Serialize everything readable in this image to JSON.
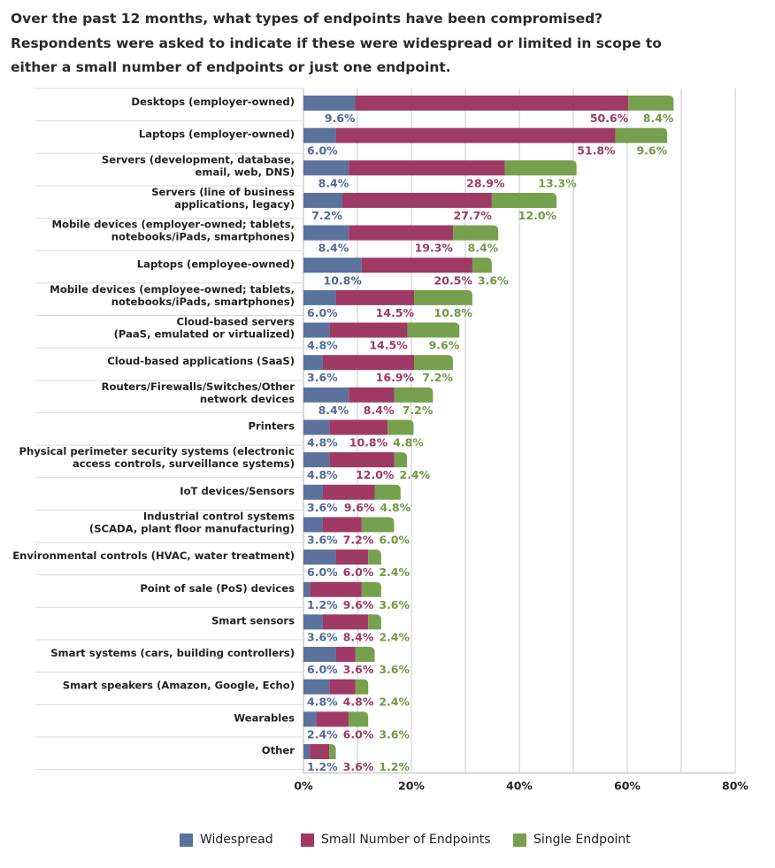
{
  "title_lines": [
    "Over the past 12 months, what types of endpoints have been compromised?",
    "Respondents were asked to indicate if these were widespread or limited in scope to",
    "either a small number of endpoints or just one endpoint."
  ],
  "chart_data": {
    "type": "bar",
    "orientation": "horizontal",
    "stacked": true,
    "title": "Over the past 12 months, what types of endpoints have been compromised? Respondents were asked to indicate if these were widespread or limited in scope to either a small number of endpoints or just one endpoint.",
    "categories": [
      [
        "Desktops (employer-owned)"
      ],
      [
        "Laptops (employer-owned)"
      ],
      [
        "Servers (development, database,",
        "email, web, DNS)"
      ],
      [
        "Servers (line of business",
        "applications, legacy)"
      ],
      [
        "Mobile devices (employer-owned; tablets,",
        "notebooks/iPads, smartphones)"
      ],
      [
        "Laptops (employee-owned)"
      ],
      [
        "Mobile devices (employee-owned; tablets,",
        "notebooks/iPads, smartphones)"
      ],
      [
        "Cloud-based servers",
        "(PaaS, emulated or virtualized)"
      ],
      [
        "Cloud-based applications (SaaS)"
      ],
      [
        "Routers/Firewalls/Switches/Other",
        "network devices"
      ],
      [
        "Printers"
      ],
      [
        "Physical perimeter security systems (electronic",
        "access controls, surveillance systems)"
      ],
      [
        "IoT devices/Sensors"
      ],
      [
        "Industrial control systems",
        "(SCADA, plant floor manufacturing)"
      ],
      [
        "Environmental controls (HVAC, water treatment)"
      ],
      [
        "Point of sale (PoS) devices"
      ],
      [
        "Smart sensors"
      ],
      [
        "Smart systems (cars, building controllers)"
      ],
      [
        "Smart speakers (Amazon, Google, Echo)"
      ],
      [
        "Wearables"
      ],
      [
        "Other"
      ]
    ],
    "series": [
      {
        "name": "Widespread",
        "color": "#5a729c",
        "values": [
          9.6,
          6.0,
          8.4,
          7.2,
          8.4,
          10.8,
          6.0,
          4.8,
          3.6,
          8.4,
          4.8,
          4.8,
          3.6,
          3.6,
          6.0,
          1.2,
          3.6,
          6.0,
          4.8,
          2.4,
          1.2
        ]
      },
      {
        "name": "Small Number of Endpoints",
        "color": "#9e3a64",
        "values": [
          50.6,
          51.8,
          28.9,
          27.7,
          19.3,
          20.5,
          14.5,
          14.5,
          16.9,
          8.4,
          10.8,
          12.0,
          9.6,
          7.2,
          6.0,
          9.6,
          8.4,
          3.6,
          4.8,
          6.0,
          3.6
        ]
      },
      {
        "name": "Single Endpoint",
        "color": "#77a04e",
        "values": [
          8.4,
          9.6,
          13.3,
          12.0,
          8.4,
          3.6,
          10.8,
          9.6,
          7.2,
          7.2,
          4.8,
          2.4,
          4.8,
          6.0,
          2.4,
          3.6,
          2.4,
          3.6,
          2.4,
          3.6,
          1.2
        ]
      }
    ],
    "label_colors": [
      "#4f6a99",
      "#9e3a64",
      "#6f9a45"
    ],
    "xlim": [
      0,
      80
    ],
    "xticks": [
      "0%",
      "20%",
      "40%",
      "60%",
      "80%"
    ],
    "xtick_values": [
      0,
      20,
      40,
      60,
      80
    ],
    "grid": true,
    "legend_position": "bottom",
    "xlabel": "",
    "ylabel": ""
  }
}
